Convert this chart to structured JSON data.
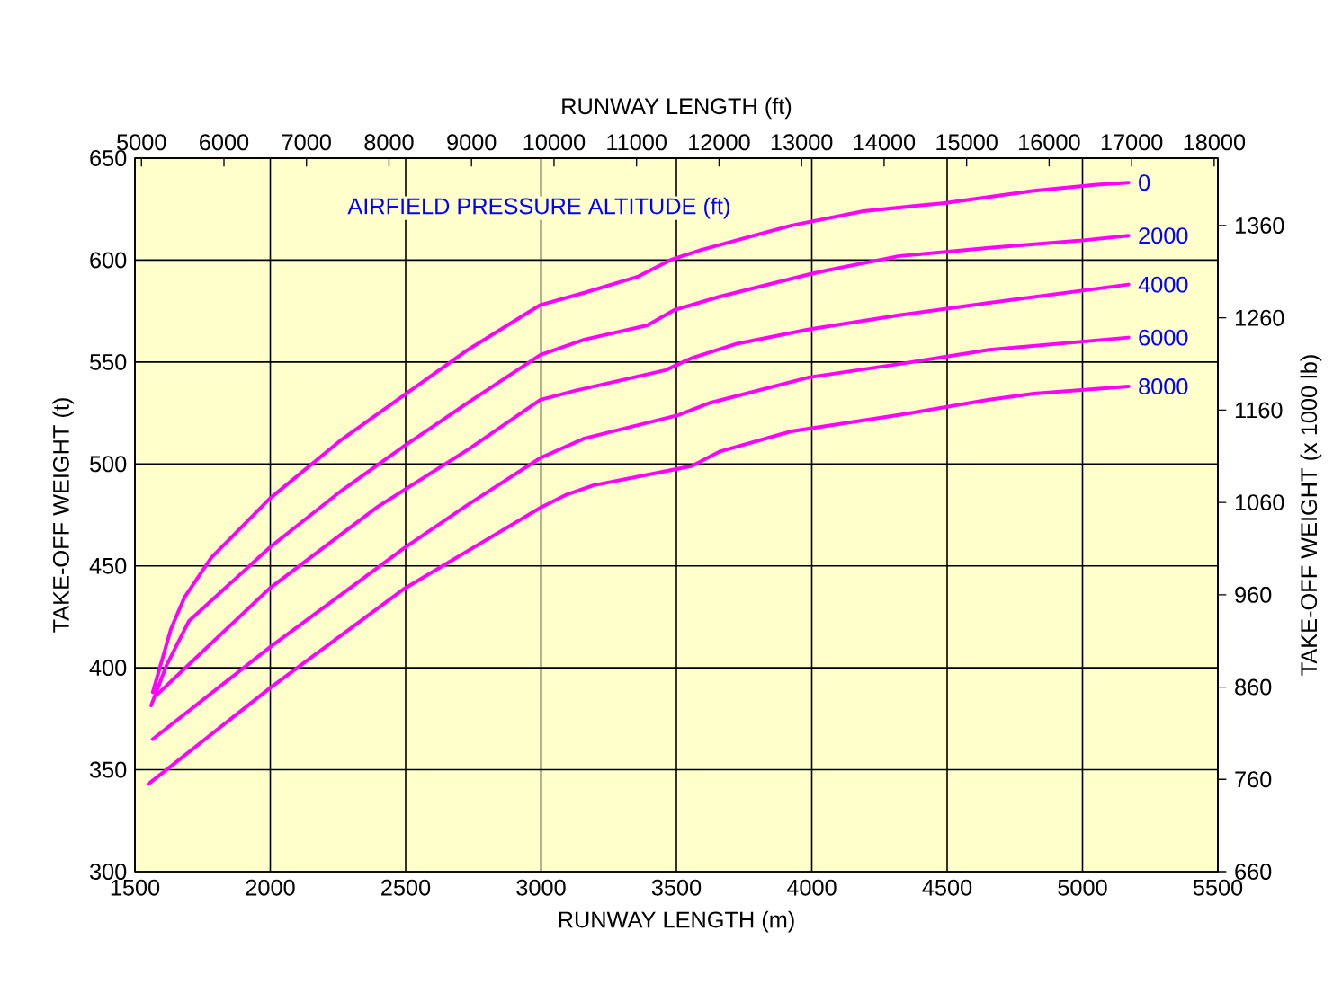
{
  "chart_data": {
    "type": "line",
    "xlabel": "RUNWAY LENGTH (m)",
    "ylabel": "TAKE-OFF WEIGHT (t)",
    "x2label": "RUNWAY LENGTH (ft)",
    "y2label": "TAKE-OFF WEIGHT (x 1000 lb)",
    "annotations": [
      "AIRFIELD PRESSURE ALTITUDE (ft)"
    ],
    "xlim": [
      1500,
      5500
    ],
    "xticks": [
      1500,
      2000,
      2500,
      3000,
      3500,
      4000,
      4500,
      5000,
      5500
    ],
    "ylim": [
      300,
      650
    ],
    "yticks": [
      300,
      350,
      400,
      450,
      500,
      550,
      600,
      650
    ],
    "x2lim": [
      4921,
      18045
    ],
    "x2ticks": [
      5000,
      6000,
      7000,
      8000,
      9000,
      10000,
      11000,
      12000,
      13000,
      14000,
      15000,
      16000,
      17000,
      18000
    ],
    "y2lim": [
      660,
      1433
    ],
    "y2ticks": [
      660,
      760,
      860,
      960,
      1060,
      1160,
      1260,
      1360
    ],
    "grid": true,
    "legend": false,
    "line_style": "solid",
    "series": [
      {
        "name": "0",
        "color": "#ff00ff",
        "x": [
          1566,
          1633,
          1683,
          1782,
          1998,
          2264,
          2497,
          2730,
          2912,
          2998,
          3160,
          3360,
          3477,
          3591,
          3925,
          4191,
          4490,
          4821,
          5053,
          5170
        ],
        "values": [
          388,
          419,
          434.5,
          454,
          483,
          512,
          534,
          556,
          571,
          578,
          584,
          592,
          600,
          605,
          617,
          624,
          628,
          634,
          637,
          638
        ]
      },
      {
        "name": "2000",
        "color": "#ff00ff",
        "x": [
          1560,
          1616,
          1700,
          1998,
          2264,
          2497,
          2730,
          2998,
          3160,
          3393,
          3492,
          3658,
          3990,
          4058,
          4324,
          4656,
          4988,
          5170
        ],
        "values": [
          381.5,
          401,
          423,
          459,
          487,
          509,
          530,
          553.5,
          561,
          568,
          575.5,
          582,
          593,
          595,
          602,
          606,
          609.5,
          612
        ]
      },
      {
        "name": "4000",
        "color": "#ff00ff",
        "x": [
          1583,
          1998,
          2397,
          2730,
          2998,
          3128,
          3460,
          3558,
          3724,
          3990,
          4322,
          4655,
          5170
        ],
        "values": [
          387,
          439,
          479,
          507,
          531.5,
          536,
          546,
          552,
          559,
          566,
          573,
          579,
          588
        ]
      },
      {
        "name": "6000",
        "color": "#ff00ff",
        "x": [
          1566,
          1998,
          2497,
          2730,
          2998,
          3160,
          3508,
          3625,
          3990,
          4322,
          4655,
          5170
        ],
        "values": [
          365,
          410,
          459,
          480,
          503,
          512.5,
          524,
          530,
          542.5,
          549,
          556,
          562
        ]
      },
      {
        "name": "8000",
        "color": "#ff00ff",
        "x": [
          1550,
          1998,
          2497,
          2998,
          3095,
          3193,
          3558,
          3658,
          3924,
          4322,
          4655,
          4821,
          5170
        ],
        "values": [
          343,
          390,
          439,
          478.5,
          485,
          489.5,
          499,
          506,
          516,
          524,
          531.5,
          534.5,
          538
        ]
      }
    ]
  }
}
